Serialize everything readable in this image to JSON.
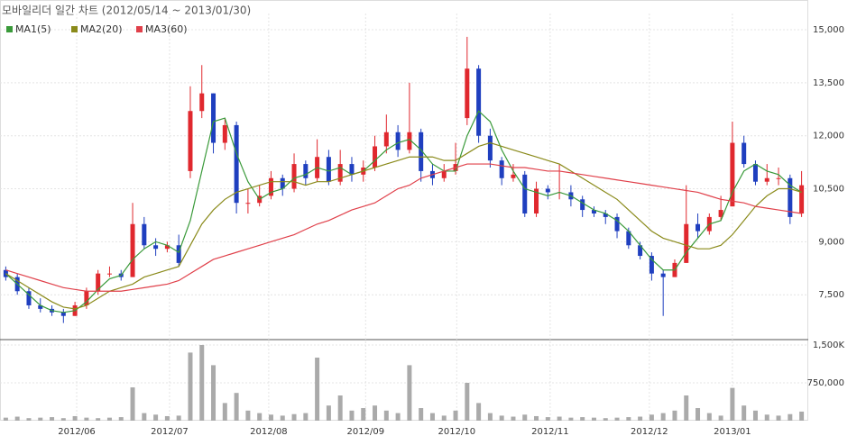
{
  "chart_data": {
    "type": "candlestick",
    "title": "모바일리더 일간 차트 (2012/05/14 ~ 2013/01/30)",
    "up_color": "#e0282e",
    "down_color": "#1f3fbf",
    "open": [
      8200,
      8000,
      7600,
      7200,
      7100,
      7000,
      6900,
      7200,
      7600,
      8100,
      8100,
      8000,
      9500,
      8900,
      8800,
      8900,
      11000,
      12700,
      13200,
      11800,
      12300,
      10100,
      10100,
      10300,
      10800,
      10500,
      11200,
      10800,
      11400,
      10700,
      11200,
      10900,
      11100,
      11700,
      12100,
      11600,
      12100,
      11000,
      10800,
      11000,
      12500,
      13900,
      12000,
      11300,
      10800,
      10900,
      9800,
      10500,
      10400,
      10400,
      10200,
      9900,
      9800,
      9700,
      9300,
      8900,
      8600,
      8100,
      8000,
      8400,
      9500,
      9300,
      9700,
      10000,
      11800,
      11200,
      10700,
      10800,
      10800,
      9800
    ],
    "high": [
      8300,
      8100,
      7700,
      7400,
      7200,
      7100,
      7300,
      7700,
      8200,
      8300,
      8200,
      10100,
      9700,
      9100,
      9000,
      9200,
      13400,
      14000,
      13200,
      12500,
      12400,
      10500,
      10600,
      11000,
      10900,
      11500,
      11300,
      11900,
      11600,
      11600,
      11400,
      11300,
      12000,
      12600,
      12300,
      13500,
      12200,
      11200,
      11200,
      11800,
      14800,
      14000,
      12200,
      11400,
      11200,
      11000,
      10700,
      10600,
      11200,
      10600,
      10300,
      10000,
      9900,
      9800,
      9400,
      9000,
      8700,
      8200,
      8500,
      10600,
      9800,
      9800,
      10300,
      12400,
      12000,
      11300,
      11200,
      11100,
      10900,
      11000
    ],
    "low": [
      7900,
      7500,
      7100,
      7000,
      6900,
      6700,
      6900,
      7100,
      7500,
      8000,
      7900,
      8000,
      8800,
      8600,
      8700,
      8300,
      10800,
      12500,
      11500,
      11600,
      9800,
      9800,
      10000,
      10200,
      10300,
      10400,
      10600,
      10700,
      10600,
      10600,
      10700,
      10700,
      11000,
      11500,
      11400,
      11500,
      10700,
      10600,
      10700,
      10900,
      12300,
      11800,
      11100,
      10600,
      10700,
      9700,
      9700,
      10200,
      10200,
      10000,
      9700,
      9700,
      9500,
      9100,
      8800,
      8500,
      7900,
      6900,
      8000,
      8400,
      9100,
      9200,
      9600,
      10000,
      11100,
      10600,
      10600,
      10600,
      9500,
      9700
    ],
    "close": [
      8000,
      7600,
      7200,
      7100,
      7000,
      6900,
      7200,
      7600,
      8100,
      8100,
      8000,
      9500,
      8900,
      8800,
      8900,
      8400,
      12700,
      13200,
      11800,
      12300,
      10100,
      10100,
      10300,
      10800,
      10500,
      11200,
      10800,
      11400,
      10700,
      11200,
      10900,
      11100,
      11700,
      12100,
      11600,
      12100,
      11000,
      10800,
      11000,
      11200,
      13900,
      12000,
      11300,
      10800,
      10900,
      9800,
      10500,
      10400,
      10400,
      10200,
      9900,
      9800,
      9700,
      9300,
      8900,
      8600,
      8100,
      8000,
      8400,
      9500,
      9300,
      9700,
      9900,
      11800,
      11200,
      10700,
      10800,
      10800,
      9700,
      10600
    ],
    "series": [
      {
        "name": "MA1(5)",
        "color": "#3a9a3a",
        "values": [
          8100,
          7800,
          7500,
          7200,
          7050,
          7000,
          7050,
          7300,
          7650,
          7950,
          8050,
          8500,
          8800,
          9000,
          8900,
          8700,
          9600,
          11000,
          12400,
          12500,
          11500,
          10700,
          10200,
          10400,
          10500,
          10800,
          10900,
          11100,
          11000,
          11100,
          10900,
          11000,
          11300,
          11600,
          11800,
          11900,
          11600,
          11200,
          11000,
          11000,
          12000,
          12700,
          12400,
          11600,
          11000,
          10500,
          10400,
          10300,
          10400,
          10300,
          10100,
          9900,
          9800,
          9600,
          9300,
          8900,
          8500,
          8200,
          8200,
          8700,
          9100,
          9500,
          9600,
          10400,
          11000,
          11200,
          11000,
          10900,
          10600,
          10400
        ]
      },
      {
        "name": "MA2(20)",
        "color": "#8a8a1a",
        "values": [
          8100,
          7900,
          7700,
          7500,
          7300,
          7150,
          7100,
          7200,
          7400,
          7600,
          7700,
          7800,
          8000,
          8100,
          8200,
          8300,
          8900,
          9500,
          9900,
          10200,
          10400,
          10500,
          10600,
          10700,
          10700,
          10700,
          10600,
          10700,
          10700,
          10800,
          10900,
          11000,
          11100,
          11200,
          11300,
          11400,
          11400,
          11400,
          11300,
          11300,
          11500,
          11700,
          11800,
          11700,
          11600,
          11500,
          11400,
          11300,
          11200,
          11000,
          10800,
          10600,
          10400,
          10200,
          9900,
          9600,
          9300,
          9100,
          9000,
          8900,
          8800,
          8800,
          8900,
          9200,
          9600,
          10000,
          10300,
          10500,
          10500,
          10400
        ]
      },
      {
        "name": "MA3(60)",
        "color": "#e0404a",
        "values": [
          8200,
          8100,
          8000,
          7900,
          7800,
          7700,
          7650,
          7600,
          7600,
          7600,
          7600,
          7650,
          7700,
          7750,
          7800,
          7900,
          8100,
          8300,
          8500,
          8600,
          8700,
          8800,
          8900,
          9000,
          9100,
          9200,
          9350,
          9500,
          9600,
          9750,
          9900,
          10000,
          10100,
          10300,
          10500,
          10600,
          10800,
          10900,
          11000,
          11100,
          11200,
          11200,
          11200,
          11150,
          11100,
          11100,
          11050,
          11000,
          11000,
          10950,
          10900,
          10850,
          10800,
          10750,
          10700,
          10650,
          10600,
          10550,
          10500,
          10450,
          10400,
          10300,
          10200,
          10150,
          10100,
          10000,
          9950,
          9900,
          9850,
          9800
        ]
      }
    ],
    "xlim": [
      0,
      70
    ],
    "xticks": [
      {
        "value": 6.65,
        "label": "2012/06"
      },
      {
        "value": 14.7,
        "label": "2012/07"
      },
      {
        "value": 23.3,
        "label": "2012/08"
      },
      {
        "value": 31.7,
        "label": "2012/09"
      },
      {
        "value": 39.6,
        "label": "2012/10"
      },
      {
        "value": 47.7,
        "label": "2012/11"
      },
      {
        "value": 56.3,
        "label": "2012/12"
      },
      {
        "value": 63.5,
        "label": "2013/01"
      }
    ],
    "ylim": [
      6230,
      15460
    ],
    "yticks": [
      {
        "value": 7500,
        "label": "7,500"
      },
      {
        "value": 9000,
        "label": "9,000"
      },
      {
        "value": 10500,
        "label": "10,500"
      },
      {
        "value": 12000,
        "label": "12,000"
      },
      {
        "value": 13500,
        "label": "13,500"
      },
      {
        "value": 15000,
        "label": "15,000"
      }
    ],
    "grid": true,
    "volume": {
      "color": "#aaaaaa",
      "ylim": [
        0,
        1607000
      ],
      "yticks": [
        {
          "value": 750000,
          "label": "750,000"
        },
        {
          "value": 1500000,
          "label": "1,500K"
        }
      ],
      "values": [
        60000,
        80000,
        50000,
        60000,
        70000,
        50000,
        90000,
        60000,
        50000,
        60000,
        70000,
        660000,
        150000,
        120000,
        90000,
        100000,
        1350000,
        1500000,
        1100000,
        350000,
        550000,
        200000,
        150000,
        120000,
        100000,
        130000,
        150000,
        1250000,
        300000,
        500000,
        200000,
        250000,
        300000,
        200000,
        150000,
        1100000,
        250000,
        150000,
        100000,
        200000,
        750000,
        350000,
        150000,
        100000,
        80000,
        120000,
        90000,
        70000,
        80000,
        60000,
        70000,
        60000,
        50000,
        60000,
        70000,
        80000,
        120000,
        150000,
        200000,
        500000,
        250000,
        150000,
        100000,
        650000,
        300000,
        200000,
        120000,
        100000,
        130000,
        180000
      ]
    }
  }
}
